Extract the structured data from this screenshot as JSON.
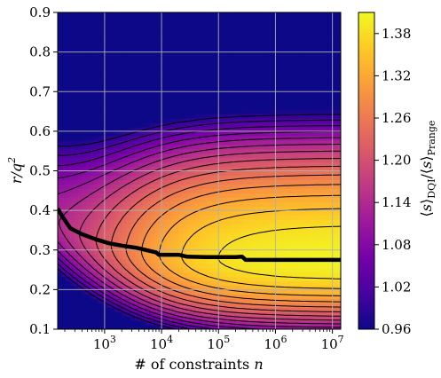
{
  "chart_data": {
    "type": "heatmap",
    "title": "",
    "xlabel": "# of constraints n",
    "ylabel": "r/q²",
    "colorbar_label": "⟨s⟩DQI/⟨s⟩Prange",
    "x_scale": "log",
    "xlim": [
      150,
      14000000
    ],
    "ylim": [
      0.1,
      0.9
    ],
    "x_ticks": [
      {
        "value": 1000,
        "mantissa": "10",
        "exp": "3"
      },
      {
        "value": 10000,
        "mantissa": "10",
        "exp": "4"
      },
      {
        "value": 100000,
        "mantissa": "10",
        "exp": "5"
      },
      {
        "value": 1000000,
        "mantissa": "10",
        "exp": "6"
      },
      {
        "value": 10000000,
        "mantissa": "10",
        "exp": "7"
      }
    ],
    "y_ticks": [
      "0.1",
      "0.2",
      "0.3",
      "0.4",
      "0.5",
      "0.6",
      "0.7",
      "0.8",
      "0.9"
    ],
    "colorbar_ticks": [
      "0.96",
      "1.02",
      "1.08",
      "1.14",
      "1.20",
      "1.26",
      "1.32",
      "1.38"
    ],
    "color_range": [
      0.96,
      1.41
    ],
    "colormap": "plasma",
    "colormap_stops": [
      "#0d0887",
      "#46039f",
      "#7201a8",
      "#9c179e",
      "#bd3786",
      "#d8576b",
      "#ed7953",
      "#fb9f3a",
      "#fdca26",
      "#f0f921"
    ],
    "grid": true,
    "optimal_curve": {
      "n": [
        150,
        180,
        250,
        400,
        700,
        1200,
        2000,
        3500,
        6000,
        8000,
        9000,
        20000,
        28000,
        60000,
        100000,
        200000,
        260000,
        300000,
        1000000,
        14000000
      ],
      "r_over_q2": [
        0.405,
        0.385,
        0.355,
        0.34,
        0.327,
        0.317,
        0.311,
        0.306,
        0.298,
        0.294,
        0.288,
        0.288,
        0.283,
        0.282,
        0.282,
        0.282,
        0.283,
        0.275,
        0.275,
        0.275
      ]
    }
  }
}
